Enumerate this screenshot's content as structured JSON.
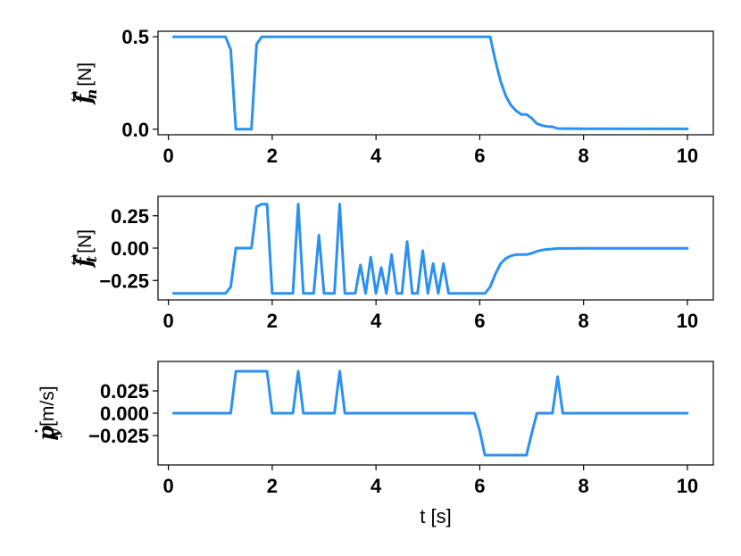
{
  "chart_data": [
    {
      "type": "line",
      "ylabel": {
        "symbol": "f",
        "subscript": "n",
        "accent": "↔",
        "unit": "[N]"
      },
      "xlabel": "",
      "xlim": [
        -0.2,
        10.5
      ],
      "ylim": [
        -0.03,
        0.53
      ],
      "xticks": [
        0,
        2,
        4,
        6,
        8,
        10
      ],
      "xtick_labels": [
        "0",
        "2",
        "4",
        "6",
        "8",
        "10"
      ],
      "yticks": [
        0.0,
        0.5
      ],
      "ytick_labels": [
        "0.0",
        "0.5"
      ],
      "color": "#2b91f0",
      "series": [
        {
          "x": [
            0.1,
            1.1,
            1.2,
            1.3,
            1.6,
            1.7,
            1.8,
            6.2,
            6.3,
            6.4,
            6.5,
            6.6,
            6.7,
            6.8,
            6.9,
            7.0,
            7.1,
            7.2,
            7.3,
            7.4,
            7.5,
            8.0,
            10.0
          ],
          "y": [
            0.5,
            0.5,
            0.43,
            0.0,
            0.0,
            0.46,
            0.5,
            0.5,
            0.37,
            0.26,
            0.18,
            0.13,
            0.1,
            0.08,
            0.08,
            0.06,
            0.03,
            0.02,
            0.015,
            0.013,
            0.004,
            0.003,
            0.002
          ]
        }
      ]
    },
    {
      "type": "line",
      "ylabel": {
        "symbol": "f",
        "subscript": "t",
        "accent": "↔",
        "unit": "[N]"
      },
      "xlabel": "",
      "xlim": [
        -0.2,
        10.5
      ],
      "ylim": [
        -0.4,
        0.4
      ],
      "xticks": [
        0,
        2,
        4,
        6,
        8,
        10
      ],
      "xtick_labels": [
        "0",
        "2",
        "4",
        "6",
        "8",
        "10"
      ],
      "yticks": [
        -0.25,
        0.0,
        0.25
      ],
      "ytick_labels": [
        "−0.25",
        "0.00",
        "0.25"
      ],
      "color": "#2b91f0",
      "series": [
        {
          "x": [
            0.1,
            1.1,
            1.2,
            1.3,
            1.6,
            1.7,
            1.8,
            1.9,
            2.0,
            2.4,
            2.5,
            2.6,
            2.8,
            2.9,
            3.0,
            3.2,
            3.3,
            3.4,
            3.6,
            3.7,
            3.8,
            3.9,
            4.0,
            4.1,
            4.2,
            4.3,
            4.4,
            4.5,
            4.6,
            4.7,
            4.8,
            4.9,
            5.0,
            5.1,
            5.2,
            5.3,
            5.4,
            5.5,
            6.1,
            6.2,
            6.3,
            6.4,
            6.5,
            6.6,
            6.7,
            6.8,
            6.9,
            7.0,
            7.1,
            7.2,
            7.3,
            7.4,
            7.5,
            8.0,
            10.0
          ],
          "y": [
            -0.35,
            -0.35,
            -0.3,
            0.0,
            0.0,
            0.32,
            0.34,
            0.34,
            -0.35,
            -0.35,
            0.34,
            -0.35,
            -0.35,
            0.1,
            -0.35,
            -0.35,
            0.34,
            -0.35,
            -0.35,
            -0.13,
            -0.35,
            -0.07,
            -0.35,
            -0.15,
            -0.35,
            -0.05,
            -0.35,
            -0.35,
            0.05,
            -0.35,
            -0.35,
            -0.02,
            -0.35,
            -0.12,
            -0.35,
            -0.12,
            -0.35,
            -0.35,
            -0.35,
            -0.3,
            -0.2,
            -0.12,
            -0.08,
            -0.06,
            -0.05,
            -0.05,
            -0.05,
            -0.04,
            -0.025,
            -0.015,
            -0.01,
            -0.007,
            -0.003,
            -0.002,
            -0.002
          ]
        }
      ]
    },
    {
      "type": "line",
      "ylabel": {
        "symbol": "p",
        "subscript": "y",
        "accent": "·",
        "unit": "[m/s]"
      },
      "xlabel": "t [s]",
      "xlim": [
        -0.2,
        10.5
      ],
      "ylim": [
        -0.058,
        0.058
      ],
      "xticks": [
        0,
        2,
        4,
        6,
        8,
        10
      ],
      "xtick_labels": [
        "0",
        "2",
        "4",
        "6",
        "8",
        "10"
      ],
      "yticks": [
        -0.025,
        0.0,
        0.025
      ],
      "ytick_labels": [
        "−0.025",
        "0.000",
        "0.025"
      ],
      "color": "#2b91f0",
      "series": [
        {
          "x": [
            0.1,
            1.2,
            1.3,
            1.9,
            2.0,
            2.4,
            2.5,
            2.6,
            3.2,
            3.3,
            3.4,
            5.9,
            6.0,
            6.1,
            6.9,
            7.0,
            7.1,
            7.4,
            7.5,
            7.6,
            10.0
          ],
          "y": [
            0.0,
            0.0,
            0.047,
            0.047,
            0.0,
            0.0,
            0.047,
            0.0,
            0.0,
            0.047,
            0.0,
            0.0,
            -0.02,
            -0.047,
            -0.047,
            -0.023,
            0.0,
            0.0,
            0.041,
            0.0,
            0.0
          ]
        }
      ]
    }
  ]
}
